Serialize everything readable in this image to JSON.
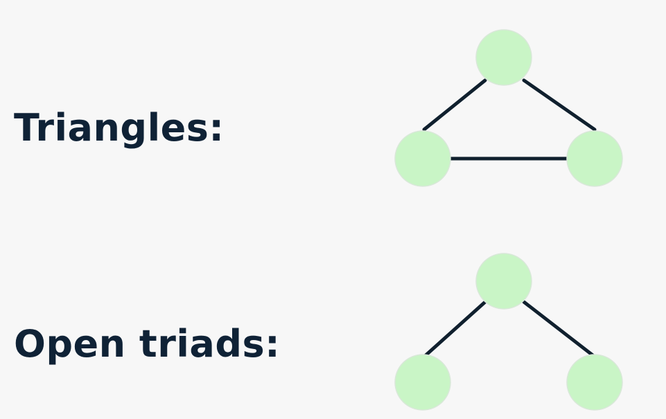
{
  "diagrams": [
    {
      "label": "Triangles:",
      "nodes": [
        "top",
        "left",
        "right"
      ],
      "edges": [
        [
          "top",
          "left"
        ],
        [
          "top",
          "right"
        ],
        [
          "left",
          "right"
        ]
      ],
      "node_color": "#c9f5c6",
      "edge_color": "#10202e"
    },
    {
      "label": "Open triads:",
      "nodes": [
        "top",
        "left",
        "right"
      ],
      "edges": [
        [
          "top",
          "left"
        ],
        [
          "top",
          "right"
        ]
      ],
      "node_color": "#c9f5c6",
      "edge_color": "#10202e"
    }
  ]
}
